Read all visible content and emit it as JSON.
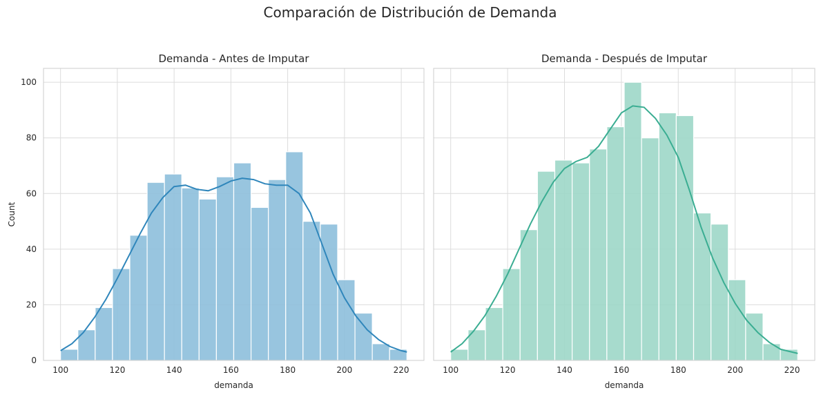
{
  "suptitle": "Comparación de Distribución de Demanda",
  "chart_data": [
    {
      "type": "bar",
      "title": "Demanda - Antes de Imputar",
      "xlabel": "demanda",
      "ylabel": "Count",
      "xlim": [
        94,
        228
      ],
      "ylim": [
        0,
        105
      ],
      "xticks": [
        100,
        120,
        140,
        160,
        180,
        200,
        220
      ],
      "yticks": [
        0,
        20,
        40,
        60,
        80,
        100
      ],
      "grid": true,
      "bin_edges": [
        100.0,
        106.1,
        112.2,
        118.3,
        124.4,
        130.5,
        136.6,
        142.7,
        148.8,
        154.9,
        161.0,
        167.1,
        173.2,
        179.3,
        185.4,
        191.5,
        197.6,
        203.7,
        209.8,
        215.9,
        222.0
      ],
      "values": [
        4,
        11,
        19,
        33,
        45,
        64,
        67,
        62,
        58,
        66,
        71,
        55,
        65,
        75,
        50,
        49,
        29,
        17,
        6,
        4
      ],
      "kde": {
        "x": [
          100,
          104,
          108,
          112,
          116,
          120,
          124,
          128,
          132,
          136,
          140,
          144,
          148,
          152,
          156,
          160,
          164,
          168,
          172,
          176,
          180,
          184,
          188,
          192,
          196,
          200,
          204,
          208,
          212,
          216,
          220,
          222
        ],
        "y": [
          3.5,
          6,
          10,
          15.5,
          22,
          29.5,
          37.5,
          45.5,
          53,
          58.5,
          62.5,
          63,
          61.5,
          61,
          62.5,
          64.5,
          65.5,
          65,
          63.5,
          63,
          63,
          60,
          53,
          42,
          31,
          22.5,
          16,
          11,
          7.5,
          5,
          3.5,
          3
        ]
      },
      "bar_color": "#8dbfdc",
      "line_color": "#2f86bb"
    },
    {
      "type": "bar",
      "title": "Demanda - Después de Imputar",
      "xlabel": "demanda",
      "ylabel": "",
      "xlim": [
        94,
        228
      ],
      "ylim": [
        0,
        105
      ],
      "xticks": [
        100,
        120,
        140,
        160,
        180,
        200,
        220
      ],
      "yticks": [
        0,
        20,
        40,
        60,
        80,
        100
      ],
      "grid": true,
      "bin_edges": [
        100.0,
        106.1,
        112.2,
        118.3,
        124.4,
        130.5,
        136.6,
        142.7,
        148.8,
        154.9,
        161.0,
        167.1,
        173.2,
        179.3,
        185.4,
        191.5,
        197.6,
        203.7,
        209.8,
        215.9,
        222.0
      ],
      "values": [
        4,
        11,
        19,
        33,
        47,
        68,
        72,
        71,
        76,
        84,
        100,
        80,
        89,
        88,
        53,
        49,
        29,
        17,
        6,
        4
      ],
      "kde": {
        "x": [
          100,
          104,
          108,
          112,
          116,
          120,
          124,
          128,
          132,
          136,
          140,
          144,
          148,
          152,
          156,
          160,
          164,
          168,
          172,
          176,
          180,
          184,
          188,
          192,
          196,
          200,
          204,
          208,
          212,
          216,
          220,
          222
        ],
        "y": [
          3,
          6,
          10.5,
          16,
          23,
          31,
          40,
          49,
          57,
          64,
          69,
          71.5,
          73,
          77,
          83,
          89,
          91.5,
          91,
          87,
          81,
          73,
          61,
          48,
          37,
          28,
          20.5,
          14.5,
          10,
          6.5,
          4,
          3,
          2.5
        ]
      },
      "bar_color": "#9dd7c8",
      "line_color": "#3aad92"
    }
  ]
}
